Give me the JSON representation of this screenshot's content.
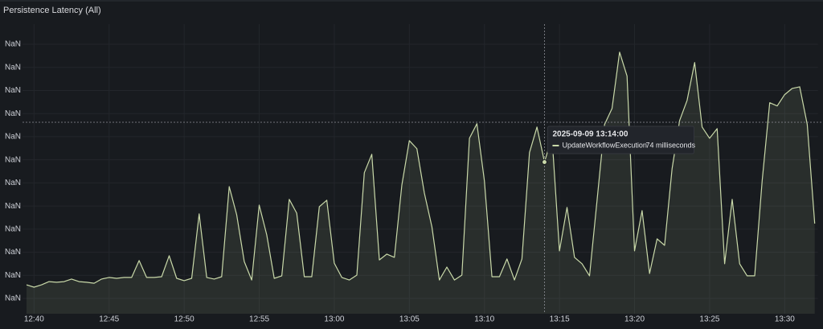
{
  "chart_data": {
    "type": "line",
    "title": "Persistence Latency (All)",
    "categories": [
      null,
      "12:40",
      null,
      null,
      null,
      null,
      null,
      null,
      null,
      null,
      null,
      "12:45",
      null,
      null,
      null,
      null,
      null,
      null,
      null,
      null,
      null,
      "12:50",
      null,
      null,
      null,
      null,
      null,
      null,
      null,
      null,
      null,
      "12:55",
      null,
      null,
      null,
      null,
      null,
      null,
      null,
      null,
      null,
      "13:00",
      null,
      null,
      null,
      null,
      null,
      null,
      null,
      null,
      null,
      "13:05",
      null,
      null,
      null,
      null,
      null,
      null,
      null,
      null,
      null,
      "13:10",
      null,
      null,
      null,
      null,
      null,
      null,
      null,
      null,
      null,
      "13:15",
      null,
      null,
      null,
      null,
      null,
      null,
      null,
      null,
      null,
      "13:20",
      null,
      null,
      null,
      null,
      null,
      null,
      null,
      null,
      null,
      "13:25",
      null,
      null,
      null,
      null,
      null,
      null,
      null,
      null,
      null,
      "13:30",
      null,
      null,
      null,
      null
    ],
    "series": [
      {
        "name": "UpdateWorkflowExecution",
        "color": "#c9d9a9",
        "values": [
          20.9,
          19.9,
          20.9,
          22.3,
          22.0,
          22.3,
          23.4,
          22.3,
          22.0,
          21.6,
          23.4,
          24.1,
          23.7,
          24.1,
          24.1,
          31.4,
          24.1,
          24.1,
          24.4,
          33.5,
          23.7,
          22.7,
          23.7,
          51.6,
          24.1,
          23.4,
          24.4,
          63.4,
          51.2,
          31.0,
          23.0,
          55.4,
          42.5,
          23.7,
          24.8,
          57.9,
          51.9,
          24.4,
          24.4,
          54.7,
          57.5,
          30.3,
          24.1,
          23.0,
          25.1,
          69.4,
          77.4,
          31.7,
          34.2,
          32.8,
          64.1,
          83.3,
          79.8,
          60.6,
          46.0,
          23.0,
          28.6,
          23.0,
          25.1,
          84.3,
          90.6,
          65.9,
          24.4,
          24.4,
          32.1,
          23.0,
          32.1,
          78.1,
          89.2,
          74,
          85.0,
          35.6,
          54.4,
          32.8,
          30.0,
          24.8,
          57.2,
          90.3,
          97.2,
          121.6,
          111.2,
          35.6,
          53.0,
          25.8,
          40.8,
          38.0,
          71.1,
          92.0,
          100.7,
          117.1,
          89.2,
          84.3,
          88.5,
          30.0,
          57.9,
          30.0,
          24.8,
          24.8,
          65.9,
          99.7,
          98.3,
          103.2,
          105.9,
          106.6,
          90.3,
          47.4
        ],
        "value_labels": [
          null,
          null,
          null,
          null,
          null,
          null,
          null,
          null,
          null,
          null,
          null,
          null,
          null,
          null,
          null,
          null,
          null,
          null,
          null,
          null,
          null,
          null,
          null,
          null,
          null,
          null,
          null,
          null,
          null,
          null,
          null,
          null,
          null,
          null,
          null,
          null,
          null,
          null,
          null,
          null,
          null,
          null,
          null,
          null,
          null,
          null,
          null,
          null,
          null,
          null,
          null,
          null,
          null,
          null,
          null,
          null,
          null,
          null,
          null,
          null,
          null,
          null,
          null,
          null,
          null,
          null,
          null,
          null,
          null,
          "74 milliseconds",
          null,
          null,
          null,
          null,
          null,
          null,
          null,
          null,
          null,
          null,
          null,
          null,
          null,
          null,
          null,
          null,
          null,
          null,
          null,
          null,
          null,
          null,
          null,
          null,
          null,
          null,
          null,
          null,
          null,
          null,
          null,
          null,
          null,
          null,
          null,
          null
        ]
      }
    ],
    "tooltip_title": "2025-09-09 13:14:00",
    "ylim": [
      8.4,
      133.7
    ],
    "yticks": [
      {
        "value": 15,
        "label": "NaN"
      },
      {
        "value": 25,
        "label": "NaN"
      },
      {
        "value": 35,
        "label": "NaN"
      },
      {
        "value": 45,
        "label": "NaN"
      },
      {
        "value": 55,
        "label": "NaN"
      },
      {
        "value": 65,
        "label": "NaN"
      },
      {
        "value": 75,
        "label": "NaN"
      },
      {
        "value": 85,
        "label": "NaN"
      },
      {
        "value": 95,
        "label": "NaN"
      },
      {
        "value": 105,
        "label": "NaN"
      },
      {
        "value": 115,
        "label": "NaN"
      },
      {
        "value": 125,
        "label": "NaN"
      }
    ],
    "grid": true
  }
}
